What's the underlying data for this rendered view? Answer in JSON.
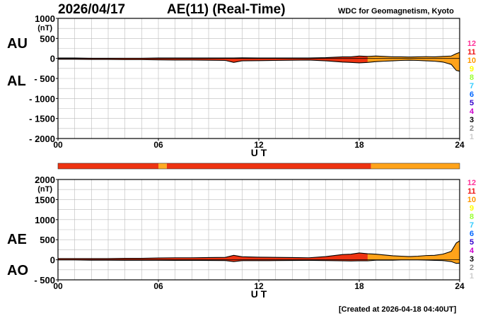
{
  "header": {
    "date": "2026/04/17",
    "title": "AE(11) (Real-Time)",
    "source": "WDC for Geomagnetism, Kyoto"
  },
  "footer": {
    "created": "[Created at 2026-04-18 04:40UT]"
  },
  "labels": {
    "au": "AU",
    "al": "AL",
    "ae": "AE",
    "ao": "AO"
  },
  "legend": {
    "items": [
      {
        "label": "12",
        "color": "#ff3399"
      },
      {
        "label": "11",
        "color": "#ee1111"
      },
      {
        "label": "10",
        "color": "#ff9900"
      },
      {
        "label": "9",
        "color": "#ffff00"
      },
      {
        "label": "8",
        "color": "#99ff33"
      },
      {
        "label": "7",
        "color": "#33ccff"
      },
      {
        "label": "6",
        "color": "#0066ff"
      },
      {
        "label": "5",
        "color": "#3300cc"
      },
      {
        "label": "4",
        "color": "#cc00cc"
      },
      {
        "label": "3",
        "color": "#000000"
      },
      {
        "label": "2",
        "color": "#888888"
      },
      {
        "label": "1",
        "color": "#cccccc"
      }
    ]
  },
  "station_bar": {
    "segments": [
      {
        "from": 0,
        "to": 6.0,
        "color": "#ee3311"
      },
      {
        "from": 6.0,
        "to": 6.5,
        "color": "#ffaa22"
      },
      {
        "from": 6.5,
        "to": 18.7,
        "color": "#ee3311"
      },
      {
        "from": 18.7,
        "to": 24,
        "color": "#ffa31a"
      }
    ]
  },
  "chart_data": [
    {
      "type": "area",
      "title": "AU / AL",
      "xlabel": "U T",
      "ylabel": "(nT)",
      "xlim": [
        0,
        24
      ],
      "ylim": [
        -2000,
        1000
      ],
      "xticks": [
        "00",
        "06",
        "12",
        "18",
        "24"
      ],
      "yticks": [
        "1000",
        "500",
        "0",
        "- 500",
        "- 1000",
        "- 1500",
        "- 2000"
      ],
      "grid": true,
      "x": [
        0,
        1,
        2,
        3,
        4,
        5,
        6,
        7,
        8,
        9,
        10,
        10.5,
        11,
        12,
        13,
        14,
        15,
        16,
        17,
        17.5,
        18,
        18.5,
        19,
        19.5,
        20,
        20.5,
        21,
        21.5,
        22,
        22.5,
        23,
        23.5,
        23.8,
        24
      ],
      "series": [
        {
          "name": "AU",
          "values": [
            10,
            10,
            5,
            5,
            5,
            5,
            10,
            10,
            10,
            10,
            10,
            10,
            15,
            10,
            10,
            10,
            10,
            20,
            40,
            40,
            60,
            50,
            60,
            50,
            40,
            40,
            35,
            40,
            45,
            40,
            50,
            60,
            120,
            150
          ]
        },
        {
          "name": "AL",
          "values": [
            -20,
            -20,
            -25,
            -25,
            -30,
            -30,
            -35,
            -40,
            -40,
            -45,
            -50,
            -100,
            -60,
            -55,
            -50,
            -45,
            -40,
            -60,
            -90,
            -100,
            -110,
            -100,
            -80,
            -70,
            -60,
            -50,
            -45,
            -50,
            -60,
            -70,
            -90,
            -150,
            -300,
            -320
          ]
        }
      ]
    },
    {
      "type": "area",
      "title": "AE / AO",
      "xlabel": "U T",
      "ylabel": "(nT)",
      "xlim": [
        0,
        24
      ],
      "ylim": [
        -500,
        2000
      ],
      "xticks": [
        "00",
        "06",
        "12",
        "18",
        "24"
      ],
      "yticks": [
        "2000",
        "1500",
        "1000",
        "500",
        "0",
        "- 500"
      ],
      "grid": true,
      "x": [
        0,
        1,
        2,
        3,
        4,
        5,
        6,
        7,
        8,
        9,
        10,
        10.5,
        11,
        12,
        13,
        14,
        15,
        16,
        17,
        17.5,
        18,
        18.5,
        19,
        19.5,
        20,
        20.5,
        21,
        21.5,
        22,
        22.5,
        23,
        23.5,
        23.8,
        24
      ],
      "series": [
        {
          "name": "AE",
          "values": [
            30,
            30,
            30,
            30,
            35,
            35,
            45,
            50,
            50,
            55,
            60,
            110,
            75,
            65,
            60,
            55,
            50,
            80,
            130,
            140,
            170,
            150,
            140,
            120,
            100,
            90,
            80,
            90,
            105,
            110,
            140,
            210,
            420,
            470
          ]
        },
        {
          "name": "AO",
          "values": [
            -5,
            -5,
            -10,
            -10,
            -12,
            -12,
            -12,
            -15,
            -15,
            -17,
            -20,
            -45,
            -22,
            -22,
            -20,
            -17,
            -15,
            -20,
            -25,
            -30,
            -25,
            -25,
            -10,
            -10,
            -10,
            -5,
            -5,
            -5,
            -8,
            -15,
            -20,
            -45,
            -90,
            -85
          ]
        }
      ]
    }
  ]
}
